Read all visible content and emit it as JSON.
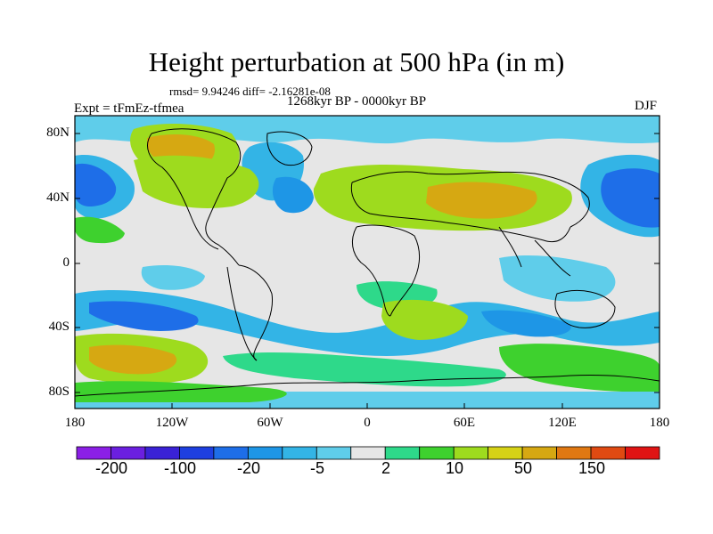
{
  "title": "Height perturbation at 500 hPa (in m)",
  "stats_line": "rmsd= 9.94246 diff= -2.16281e-08",
  "period": "1268kyr BP - 0000kyr BP",
  "experiment": "Expt = tFmEz-tfmea",
  "season": "DJF",
  "map": {
    "projection": "cylindrical equidistant",
    "lon_range": [
      -180,
      180
    ],
    "lat_range": [
      -90,
      90
    ],
    "y_ticks": [
      "80N",
      "40N",
      "0",
      "40S",
      "80S"
    ],
    "x_ticks": [
      "180",
      "120W",
      "60W",
      "0",
      "60E",
      "120E",
      "180"
    ]
  },
  "colorbar": {
    "colors": [
      "#8b1fe6",
      "#6b1fe0",
      "#3a22d6",
      "#1e3fe0",
      "#1e6ee8",
      "#1e96e6",
      "#33b4e6",
      "#5fcdea",
      "#e6e6e6",
      "#2ed98a",
      "#3ed12e",
      "#9edb1e",
      "#d6d216",
      "#d6a812",
      "#e07812",
      "#e04a12",
      "#e01414"
    ],
    "labels": [
      "-200",
      "-100",
      "-20",
      "-5",
      "2",
      "10",
      "50",
      "150"
    ]
  }
}
